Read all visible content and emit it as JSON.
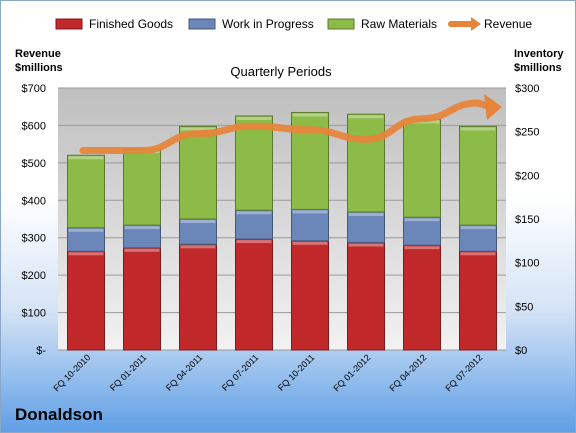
{
  "chart_data": {
    "type": "bar",
    "stacked": true,
    "title": "Quarterly Periods",
    "categories": [
      "FQ 10-2010",
      "FQ 01-2011",
      "FQ 04-2011",
      "FQ 07-2011",
      "FQ 10-2011",
      "FQ 01-2012",
      "FQ 04-2012",
      "FQ 07-2012"
    ],
    "series": [
      {
        "name": "Finished Goods",
        "axis": "right",
        "color": "#c0282a",
        "values": [
          113,
          117,
          121,
          127,
          125,
          123,
          120,
          113
        ]
      },
      {
        "name": "Work in Progress",
        "axis": "right",
        "color": "#6b86b8",
        "values": [
          27,
          26,
          29,
          33,
          36,
          35,
          32,
          30
        ]
      },
      {
        "name": "Raw Materials",
        "axis": "right",
        "color": "#8dbb48",
        "values": [
          83,
          87,
          106,
          108,
          111,
          112,
          112,
          113
        ]
      }
    ],
    "line": {
      "name": "Revenue",
      "axis": "left",
      "color": "#e8833a",
      "values": [
        533,
        533,
        578,
        598,
        588,
        563,
        618,
        660
      ]
    },
    "left_axis": {
      "label_line1": "Revenue",
      "label_line2": "$millions",
      "ylim": [
        0,
        700
      ],
      "ticks": [
        "$-",
        "$100",
        "$200",
        "$300",
        "$400",
        "$500",
        "$600",
        "$700"
      ]
    },
    "right_axis": {
      "label_line1": "Inventory",
      "label_line2": "$millions",
      "ylim": [
        0,
        300
      ],
      "ticks": [
        "$0",
        "$50",
        "$100",
        "$150",
        "$200",
        "$250",
        "$300"
      ]
    },
    "grid": true,
    "legend_position": "top"
  },
  "footer": {
    "company": "Donaldson"
  }
}
